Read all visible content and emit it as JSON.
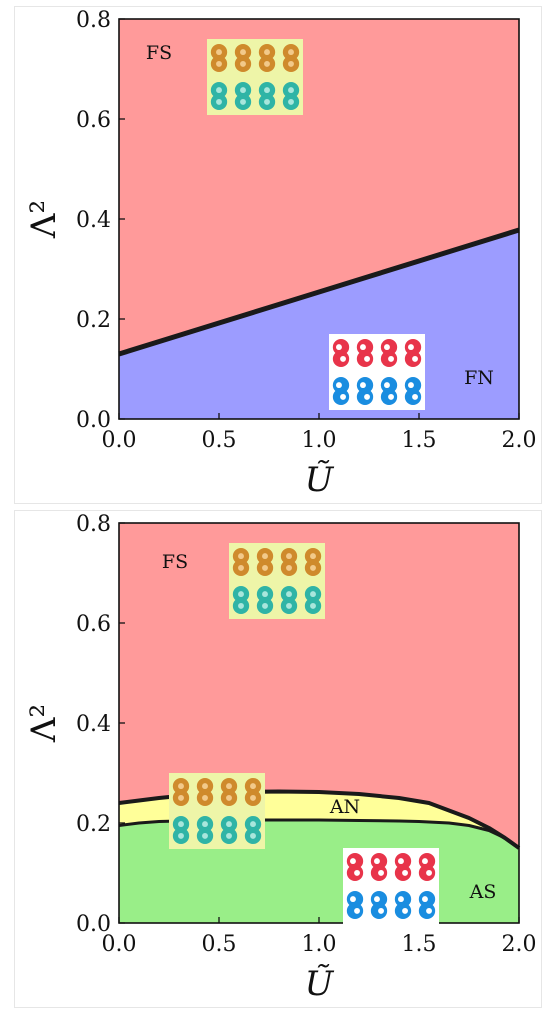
{
  "chart_data": [
    {
      "type": "area",
      "xlabel": "Ũ",
      "ylabel": "Λ²",
      "xlim": [
        0.0,
        2.0
      ],
      "ylim": [
        0.0,
        0.8
      ],
      "xticks": [
        "0.0",
        "0.5",
        "1.0",
        "1.5",
        "2.0"
      ],
      "yticks": [
        "0.0",
        "0.2",
        "0.4",
        "0.6",
        "0.8"
      ],
      "regions": [
        {
          "name": "FS",
          "color": "#ff9a9a",
          "label_at": [
            0.2,
            0.72
          ]
        },
        {
          "name": "FN",
          "color": "#9c9cff",
          "label_at": [
            1.8,
            0.07
          ]
        }
      ],
      "boundaries": [
        {
          "x": [
            0.0,
            0.25,
            0.5,
            0.75,
            1.0,
            1.25,
            1.5,
            1.75,
            2.0
          ],
          "y": [
            0.13,
            0.161,
            0.192,
            0.223,
            0.254,
            0.285,
            0.316,
            0.347,
            0.378
          ]
        }
      ],
      "insets": [
        {
          "kind": "paired",
          "label_region": "FS",
          "x": 0.44,
          "y": 0.76
        },
        {
          "kind": "separated",
          "label_region": "FN",
          "x": 1.05,
          "y": 0.17
        }
      ]
    },
    {
      "type": "area",
      "xlabel": "Ũ",
      "ylabel": "Λ²",
      "xlim": [
        0.0,
        2.0
      ],
      "ylim": [
        0.0,
        0.8
      ],
      "xticks": [
        "0.0",
        "0.5",
        "1.0",
        "1.5",
        "2.0"
      ],
      "yticks": [
        "0.0",
        "0.2",
        "0.4",
        "0.6",
        "0.8"
      ],
      "regions": [
        {
          "name": "FS",
          "color": "#ff9a9a",
          "label_at": [
            0.28,
            0.71
          ]
        },
        {
          "name": "AN",
          "color": "#ffff99",
          "label_at": [
            1.13,
            0.22
          ]
        },
        {
          "name": "AS",
          "color": "#99ee88",
          "label_at": [
            1.82,
            0.05
          ]
        }
      ],
      "boundaries": [
        {
          "name": "FS/AN",
          "x": [
            0.0,
            0.1,
            0.2,
            0.4,
            0.6,
            0.8,
            1.0,
            1.2,
            1.4,
            1.55,
            1.65,
            1.75,
            1.85,
            1.93,
            2.0
          ],
          "y": [
            0.24,
            0.245,
            0.25,
            0.258,
            0.262,
            0.263,
            0.262,
            0.258,
            0.25,
            0.24,
            0.225,
            0.21,
            0.19,
            0.17,
            0.15
          ]
        },
        {
          "name": "AN/AS",
          "x": [
            0.0,
            0.1,
            0.2,
            0.4,
            0.6,
            0.8,
            1.0,
            1.2,
            1.4,
            1.5,
            1.65,
            1.75,
            1.85,
            1.93,
            2.0
          ],
          "y": [
            0.195,
            0.2,
            0.203,
            0.205,
            0.206,
            0.206,
            0.206,
            0.205,
            0.204,
            0.203,
            0.2,
            0.195,
            0.185,
            0.17,
            0.15
          ]
        }
      ],
      "insets": [
        {
          "kind": "paired",
          "label_region": "FS",
          "x": 0.55,
          "y": 0.76
        },
        {
          "kind": "paired",
          "label_region": "AN",
          "x": 0.25,
          "y": 0.3
        },
        {
          "kind": "separated",
          "label_region": "AS",
          "x": 1.12,
          "y": 0.15
        }
      ]
    }
  ]
}
